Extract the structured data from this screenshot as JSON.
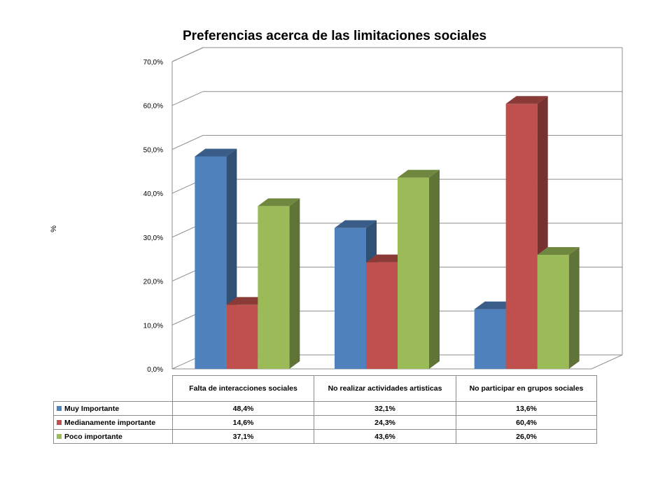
{
  "chart_data": {
    "type": "bar",
    "title": "Preferencias acerca de las limitaciones sociales",
    "ylabel": "%",
    "xlabel": "",
    "ylim": [
      0,
      70
    ],
    "yticks": [
      "0,0%",
      "10,0%",
      "20,0%",
      "30,0%",
      "40,0%",
      "50,0%",
      "60,0%",
      "70,0%"
    ],
    "grid": true,
    "legend": "table-left",
    "categories": [
      "Falta de interacciones sociales",
      "No realizar actividades artisticas",
      "No participar en grupos sociales"
    ],
    "series": [
      {
        "name": "Muy Importante",
        "color": "#4f81bd",
        "values": [
          48.4,
          32.1,
          13.6
        ],
        "labels": [
          "48,4%",
          "32,1%",
          "13,6%"
        ]
      },
      {
        "name": "Medianamente importante",
        "color": "#c0504d",
        "values": [
          14.6,
          24.3,
          60.4
        ],
        "labels": [
          "14,6%",
          "24,3%",
          "60,4%"
        ]
      },
      {
        "name": "Poco importante",
        "color": "#9bbb59",
        "values": [
          37.1,
          43.6,
          26.0
        ],
        "labels": [
          "37,1%",
          "43,6%",
          "26,0%"
        ]
      }
    ]
  }
}
